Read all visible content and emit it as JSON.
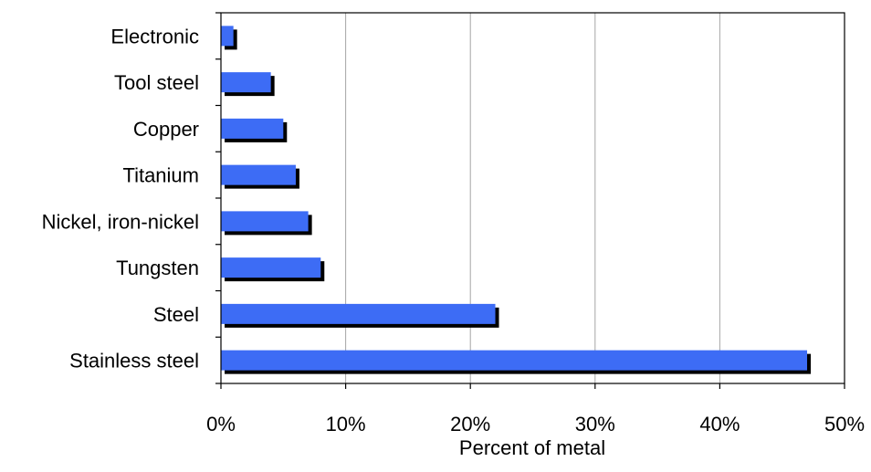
{
  "chart_data": {
    "type": "bar",
    "orientation": "horizontal",
    "categories": [
      "Electronic",
      "Tool steel",
      "Copper",
      "Titanium",
      "Nickel, iron-nickel",
      "Tungsten",
      "Steel",
      "Stainless steel"
    ],
    "values": [
      1,
      4,
      5,
      6,
      7,
      8,
      22,
      47
    ],
    "value_unit": "percent",
    "title": "",
    "xlabel": "Percent of metal",
    "ylabel": "",
    "xlim": [
      0,
      50
    ],
    "x_ticks": [
      0,
      10,
      20,
      30,
      40,
      50
    ],
    "x_tick_labels": [
      "0%",
      "10%",
      "20%",
      "30%",
      "40%",
      "50%"
    ],
    "grid": "vertical gridlines",
    "legend": "none",
    "colors": {
      "bar": "#3d6cf5",
      "bar_shadow": "#000000",
      "grid": "#a6a6a6",
      "axis": "#000000"
    }
  }
}
